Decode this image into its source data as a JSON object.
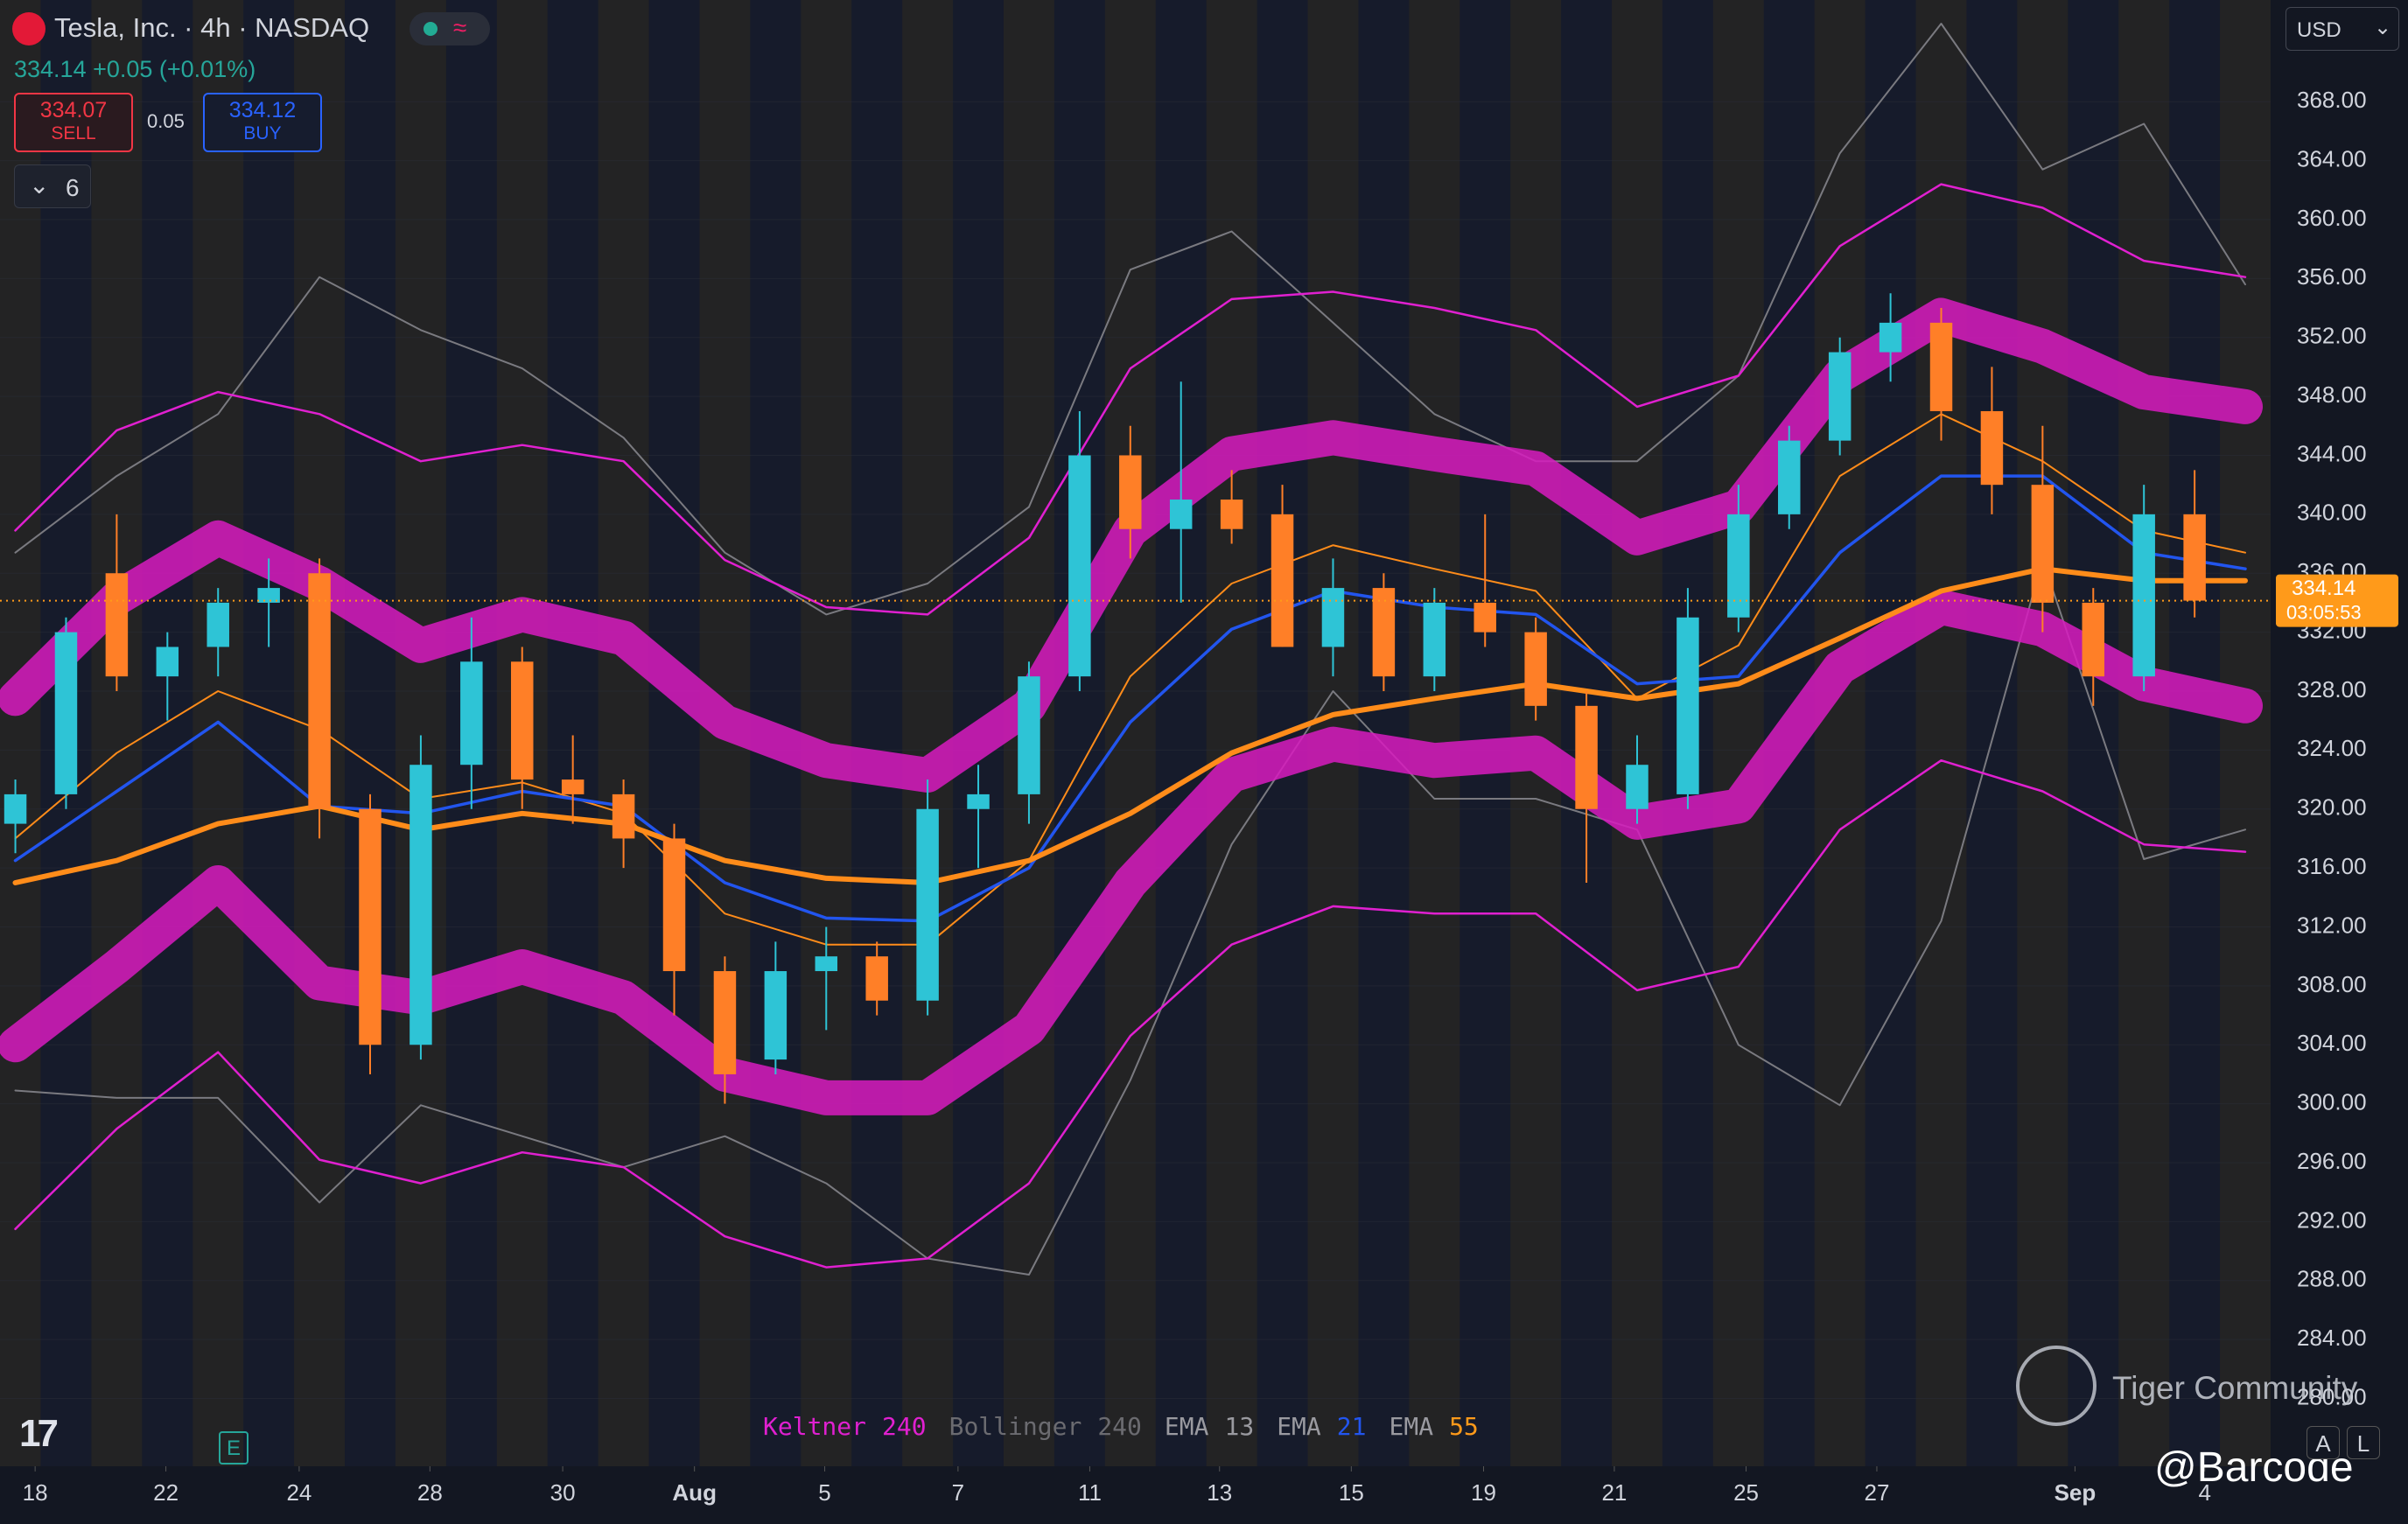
{
  "header": {
    "title": "Tesla, Inc. · 4h · NASDAQ",
    "quote": "334.14 +0.05 (+0.01%)",
    "sell_price": "334.07",
    "sell_label": "SELL",
    "spread": "0.05",
    "buy_price": "334.12",
    "buy_label": "BUY",
    "indicator_count": "6",
    "currency": "USD"
  },
  "chart_data": {
    "type": "candlestick",
    "xlim": [
      -0.303,
      44.5
    ],
    "ylim": [
      275.4,
      374.9
    ],
    "xticks": [
      {
        "value": 0.39,
        "label": "18"
      },
      {
        "value": 2.97,
        "label": "22"
      },
      {
        "value": 5.6,
        "label": "24"
      },
      {
        "value": 8.18,
        "label": "28"
      },
      {
        "value": 10.8,
        "label": "30"
      },
      {
        "value": 13.4,
        "label": "Aug"
      },
      {
        "value": 15.97,
        "label": "5"
      },
      {
        "value": 18.6,
        "label": "7"
      },
      {
        "value": 21.2,
        "label": "11"
      },
      {
        "value": 23.76,
        "label": "13"
      },
      {
        "value": 26.36,
        "label": "15"
      },
      {
        "value": 28.97,
        "label": "19"
      },
      {
        "value": 31.55,
        "label": "21"
      },
      {
        "value": 34.15,
        "label": "25"
      },
      {
        "value": 36.73,
        "label": "27"
      },
      {
        "value": 40.64,
        "label": "Sep"
      },
      {
        "value": 43.2,
        "label": "4"
      }
    ],
    "yticks": [
      {
        "value": 280,
        "label": "280.00"
      },
      {
        "value": 284,
        "label": "284.00"
      },
      {
        "value": 288,
        "label": "288.00"
      },
      {
        "value": 292,
        "label": "292.00"
      },
      {
        "value": 296,
        "label": "296.00"
      },
      {
        "value": 300,
        "label": "300.00"
      },
      {
        "value": 304,
        "label": "304.00"
      },
      {
        "value": 308,
        "label": "308.00"
      },
      {
        "value": 312,
        "label": "312.00"
      },
      {
        "value": 316,
        "label": "316.00"
      },
      {
        "value": 320,
        "label": "320.00"
      },
      {
        "value": 324,
        "label": "324.00"
      },
      {
        "value": 328,
        "label": "328.00"
      },
      {
        "value": 332,
        "label": "332.00"
      },
      {
        "value": 336,
        "label": "336.00"
      },
      {
        "value": 340,
        "label": "340.00"
      },
      {
        "value": 344,
        "label": "344.00"
      },
      {
        "value": 348,
        "label": "348.00"
      },
      {
        "value": 352,
        "label": "352.00"
      },
      {
        "value": 356,
        "label": "356.00"
      },
      {
        "value": 360,
        "label": "360.00"
      },
      {
        "value": 364,
        "label": "364.00"
      },
      {
        "value": 368,
        "label": "368.00"
      }
    ],
    "open": [
      319,
      321,
      336,
      329,
      331,
      334,
      336,
      320,
      304,
      323,
      330,
      322,
      321,
      318,
      309,
      303,
      309,
      310,
      307,
      320,
      321,
      329,
      344,
      339,
      341,
      340,
      331,
      335,
      329,
      334,
      332,
      327,
      320,
      321,
      333,
      340,
      345,
      351,
      353,
      347,
      342,
      334,
      329,
      340
    ],
    "high": [
      322,
      333,
      340,
      332,
      335,
      337,
      337,
      321,
      325,
      333,
      331,
      325,
      322,
      319,
      310,
      311,
      312,
      311,
      322,
      323,
      330,
      347,
      346,
      349,
      343,
      342,
      337,
      336,
      335,
      340,
      333,
      328,
      325,
      335,
      342,
      346,
      352,
      355,
      354,
      350,
      346,
      335,
      342,
      343
    ],
    "low": [
      317,
      320,
      328,
      326,
      329,
      331,
      318,
      302,
      303,
      320,
      320,
      319,
      316,
      306,
      300,
      302,
      305,
      306,
      306,
      316,
      319,
      328,
      337,
      334,
      338,
      331,
      329,
      328,
      328,
      331,
      326,
      315,
      319,
      320,
      332,
      339,
      344,
      349,
      345,
      340,
      332,
      327,
      328,
      333
    ],
    "close": [
      321,
      332,
      329,
      331,
      334,
      335,
      320,
      304,
      323,
      330,
      322,
      321,
      318,
      309,
      302,
      309,
      310,
      307,
      320,
      321,
      329,
      344,
      339,
      341,
      339,
      331,
      335,
      329,
      334,
      332,
      327,
      320,
      323,
      333,
      340,
      345,
      351,
      353,
      347,
      342,
      334,
      329,
      340,
      334.14
    ],
    "up_color": "#2ec4d6",
    "down_color": "#ff7f27",
    "series": [
      {
        "color": "#7a7a80",
        "width": 2,
        "values": [
          337.4,
          342.6,
          346.8,
          356.1,
          352.5,
          349.9,
          345.2,
          337.4,
          333.2,
          335.3,
          340.5,
          356.6,
          359.2,
          353,
          346.8,
          343.6,
          343.6,
          349.4,
          364.5,
          373.3,
          363.4,
          366.5,
          355.6
        ]
      },
      {
        "color": "#7a7a80",
        "width": 2,
        "values": [
          300.9,
          300.4,
          300.4,
          293.3,
          299.9,
          297.8,
          295.7,
          297.8,
          294.6,
          289.5,
          288.4,
          301.6,
          317.6,
          328,
          320.7,
          320.7,
          318.6,
          304,
          299.9,
          312.4,
          336.9,
          316.6,
          318.6
        ]
      },
      {
        "color": "#e020d0",
        "width": 2.5,
        "values": [
          338.9,
          345.7,
          348.3,
          346.8,
          343.6,
          344.7,
          343.6,
          336.9,
          333.7,
          333.2,
          338.4,
          349.9,
          354.6,
          355.1,
          354,
          352.5,
          347.3,
          349.4,
          358.2,
          362.4,
          360.8,
          357.2,
          356.1
        ]
      },
      {
        "color": "#e020d0",
        "width": 2.5,
        "values": [
          291.5,
          298.3,
          303.5,
          296.2,
          294.6,
          296.7,
          295.7,
          291,
          288.9,
          289.5,
          294.6,
          304.6,
          310.8,
          313.4,
          312.9,
          312.9,
          307.7,
          309.3,
          318.6,
          323.3,
          321.2,
          317.6,
          317.1
        ]
      },
      {
        "color": "#d81bc0",
        "width": 40,
        "values": [
          327.5,
          334.3,
          338.4,
          335.3,
          331.1,
          333.2,
          331.6,
          325.9,
          323.3,
          322.3,
          327,
          338.9,
          344.1,
          345.2,
          344.1,
          343.1,
          338.4,
          340.5,
          349.4,
          353.5,
          351.4,
          348.3,
          347.3
        ]
      },
      {
        "color": "#d81bc0",
        "width": 40,
        "values": [
          304,
          309.3,
          315,
          308.2,
          307.2,
          309.3,
          307.2,
          302,
          300.4,
          300.4,
          305.1,
          315,
          322.3,
          324.4,
          323.3,
          323.8,
          319.1,
          320.2,
          329.6,
          333.7,
          332.2,
          328.5,
          327
        ]
      },
      {
        "color": "#ff8c1a",
        "width": 2,
        "values": [
          318,
          323.8,
          328,
          325.4,
          320.7,
          321.8,
          319.7,
          312.9,
          310.8,
          310.8,
          316.5,
          329,
          335.3,
          337.9,
          336.3,
          334.8,
          327.5,
          331.1,
          342.6,
          346.8,
          343.6,
          338.9,
          337.4
        ]
      },
      {
        "color": "#2255ee",
        "width": 3.5,
        "values": [
          316.5,
          321.2,
          325.9,
          320.2,
          319.7,
          321.2,
          320.2,
          315,
          312.6,
          312.4,
          316,
          325.9,
          332.2,
          334.8,
          333.7,
          333.2,
          328.5,
          329,
          337.4,
          342.6,
          342.6,
          337.4,
          336.3
        ]
      },
      {
        "color": "#ff8c1a",
        "width": 6,
        "values": [
          315,
          316.5,
          319,
          320.2,
          318.6,
          319.7,
          319,
          316.5,
          315.3,
          315,
          316.5,
          319.7,
          323.8,
          326.4,
          327.5,
          328.5,
          327.5,
          328.5,
          331.6,
          334.8,
          336.3,
          335.5,
          335.5
        ]
      }
    ],
    "last_price": 334.14,
    "countdown": "03:05:53",
    "price_line_color": "#ff9a1a"
  },
  "legend": [
    {
      "name": "Keltner",
      "param": "240",
      "color": "#e020d0"
    },
    {
      "name": "Bollinger",
      "param": "240",
      "color": "#6b6b70"
    },
    {
      "name": "EMA",
      "param": "13",
      "color": "#9a9aa0"
    },
    {
      "name": "EMA",
      "param": "21",
      "color": "#2255ee"
    },
    {
      "name": "EMA",
      "param": "55",
      "color": "#ff9a1a"
    }
  ],
  "watermark": {
    "brand": "Tiger Community",
    "handle": "@Barcode"
  },
  "badges": {
    "earnings": "E",
    "auto": "A",
    "log": "L"
  }
}
